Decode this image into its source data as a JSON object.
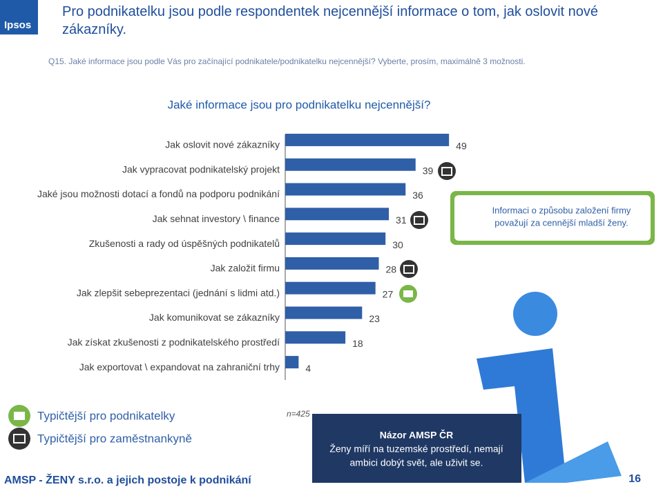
{
  "logo": "Ipsos",
  "title": "Pro podnikatelku jsou podle respondentek nejcennější informace o tom, jak oslovit nové zákazníky.",
  "question": "Q15. Jaké informace jsou podle Vás pro začínající podnikatele/podnikatelku  nejcennější? Vyberte, prosím, maximálně 3 možnosti.",
  "chart_data": {
    "type": "hbar",
    "title": "Jaké informace jsou pro podnikatelku nejcennější?",
    "categories": [
      "Jak oslovit nové zákazníky",
      "Jak vypracovat podnikatelský projekt",
      "Jaké jsou možnosti dotací a fondů na podporu podnikání",
      "Jak sehnat investory \\ finance",
      "Zkušenosti a rady od úspěšných podnikatelů",
      "Jak založit firmu",
      "Jak zlepšit sebeprezentaci (jednání s lidmi atd.)",
      "Jak komunikovat se zákazníky",
      "Jak získat zkušenosti z podnikatelského prostředí",
      "Jak exportovat \\ expandovat na zahraniční trhy"
    ],
    "values": [
      49,
      39,
      36,
      31,
      30,
      28,
      27,
      23,
      18,
      4
    ],
    "color": "#2f5fa7",
    "xlim": [
      0,
      50
    ],
    "note": "n=425"
  },
  "callout": "Informaci o způsobu založení firmy považují za cennější mladší ženy.",
  "legend": [
    "Typičtější pro podnikatelky",
    "Typičtější pro zaměstnankyně"
  ],
  "opinion": {
    "title": "Názor AMSP ČR",
    "text": "Ženy míří na tuzemské prostředí, nemají ambici dobýt svět, ale uživit se."
  },
  "footer": "AMSP - ŽENY s.r.o. a jejich postoje k podnikání",
  "page": "16"
}
